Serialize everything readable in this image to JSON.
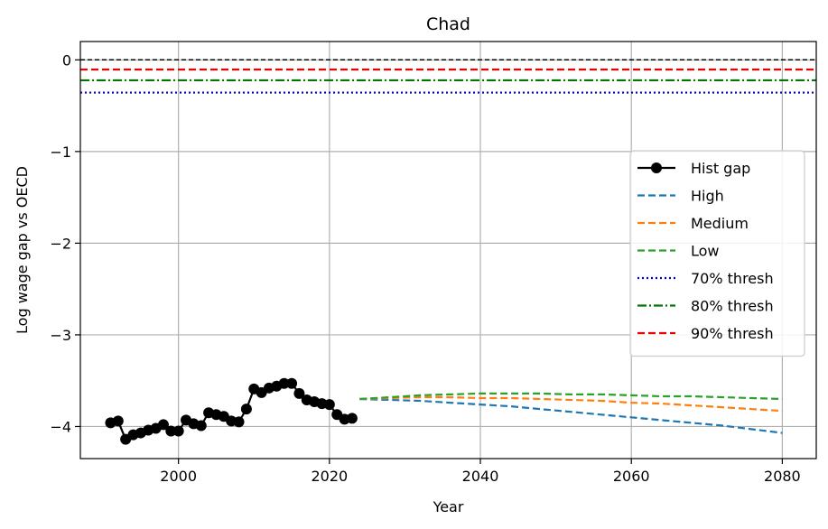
{
  "chart_data": {
    "type": "line",
    "title": "Chad",
    "xlabel": "Year",
    "ylabel": "Log wage gap vs OECD",
    "xlim": [
      1987,
      2084.5
    ],
    "ylim": [
      -4.35,
      0.2
    ],
    "xticks": [
      2000,
      2020,
      2040,
      2060,
      2080
    ],
    "yticks": [
      0,
      -1,
      -2,
      -3,
      -4
    ],
    "ytick_labels": [
      "0",
      "−1",
      "−2",
      "−3",
      "−4"
    ],
    "grid": true,
    "legend_position": "center-right",
    "hlines": [
      {
        "y": 0,
        "color": "#000000",
        "style": "dashed"
      }
    ],
    "series": [
      {
        "name": "Hist gap",
        "color": "#000000",
        "style": "solid-marker",
        "x": [
          1991,
          1992,
          1993,
          1994,
          1995,
          1996,
          1997,
          1998,
          1999,
          2000,
          2001,
          2002,
          2003,
          2004,
          2005,
          2006,
          2007,
          2008,
          2009,
          2010,
          2011,
          2012,
          2013,
          2014,
          2015,
          2016,
          2017,
          2018,
          2019,
          2020,
          2021,
          2022,
          2023
        ],
        "values": [
          -3.96,
          -3.94,
          -4.14,
          -4.09,
          -4.07,
          -4.04,
          -4.02,
          -3.98,
          -4.05,
          -4.05,
          -3.93,
          -3.97,
          -3.99,
          -3.85,
          -3.87,
          -3.89,
          -3.94,
          -3.95,
          -3.81,
          -3.59,
          -3.63,
          -3.58,
          -3.56,
          -3.53,
          -3.53,
          -3.64,
          -3.71,
          -3.73,
          -3.75,
          -3.76,
          -3.87,
          -3.92,
          -3.91
        ]
      },
      {
        "name": "High",
        "color": "#1f77b4",
        "style": "dashed",
        "x": [
          2024,
          2028,
          2032,
          2036,
          2040,
          2044,
          2048,
          2052,
          2056,
          2060,
          2064,
          2068,
          2072,
          2076,
          2080
        ],
        "values": [
          -3.7,
          -3.71,
          -3.72,
          -3.74,
          -3.76,
          -3.78,
          -3.81,
          -3.84,
          -3.87,
          -3.9,
          -3.93,
          -3.96,
          -3.99,
          -4.03,
          -4.07
        ]
      },
      {
        "name": "Medium",
        "color": "#ff7f0e",
        "style": "dashed",
        "x": [
          2024,
          2028,
          2032,
          2036,
          2040,
          2044,
          2048,
          2052,
          2056,
          2060,
          2064,
          2068,
          2072,
          2076,
          2080
        ],
        "values": [
          -3.7,
          -3.69,
          -3.68,
          -3.68,
          -3.69,
          -3.69,
          -3.7,
          -3.71,
          -3.72,
          -3.74,
          -3.75,
          -3.77,
          -3.79,
          -3.81,
          -3.83
        ]
      },
      {
        "name": "Low",
        "color": "#2ca02c",
        "style": "dashed",
        "x": [
          2024,
          2028,
          2032,
          2036,
          2040,
          2044,
          2048,
          2052,
          2056,
          2060,
          2064,
          2068,
          2072,
          2076,
          2080
        ],
        "values": [
          -3.7,
          -3.68,
          -3.66,
          -3.65,
          -3.64,
          -3.64,
          -3.64,
          -3.65,
          -3.65,
          -3.66,
          -3.67,
          -3.67,
          -3.68,
          -3.69,
          -3.7
        ]
      },
      {
        "name": "70% thresh",
        "color": "#0000cc",
        "style": "dotted",
        "hline": -0.357
      },
      {
        "name": "80% thresh",
        "color": "#007700",
        "style": "dashdot",
        "hline": -0.223
      },
      {
        "name": "90% thresh",
        "color": "#ee0000",
        "style": "dashed",
        "hline": -0.105
      }
    ]
  }
}
